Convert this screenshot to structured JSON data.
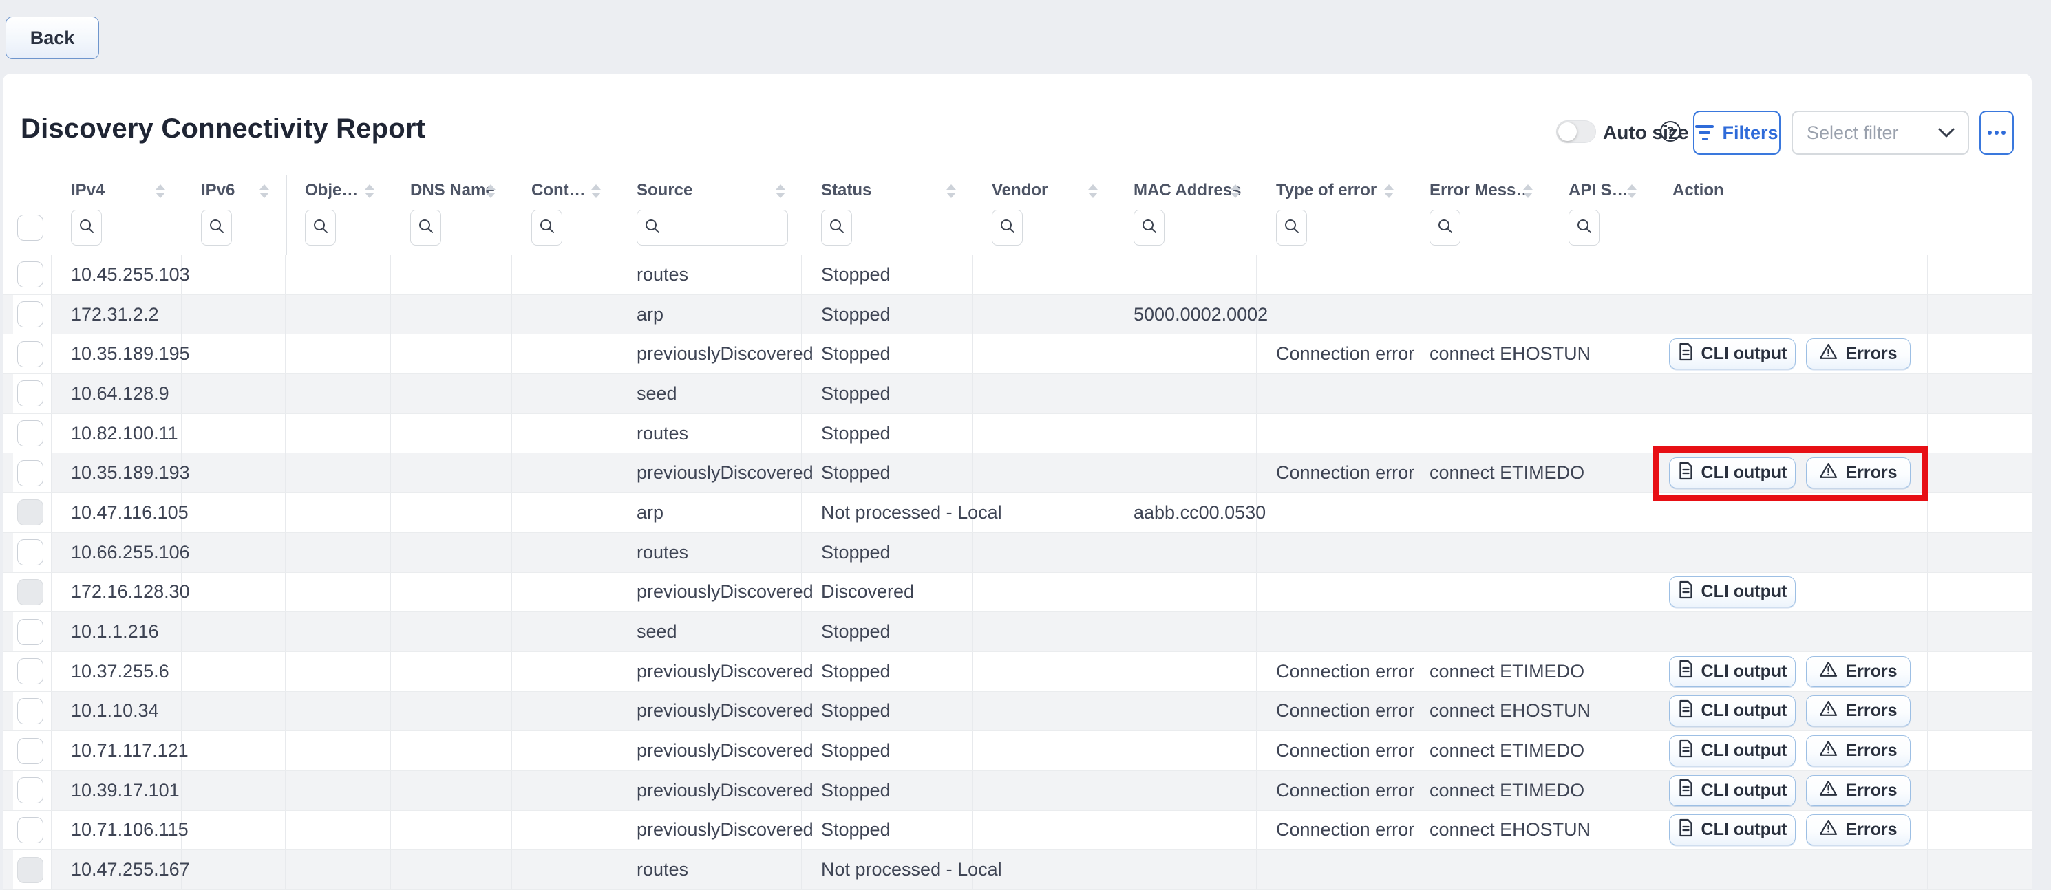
{
  "page": {
    "back_label": "Back"
  },
  "report": {
    "title": "Discovery Connectivity Report"
  },
  "toolbar": {
    "auto_size_label": "Auto size",
    "auto_size_state": "off",
    "filters_label": "Filters",
    "select_filter_placeholder": "Select filter",
    "icons": [
      "toggle-switch",
      "question-circle-icon",
      "filter-lines-icon",
      "chevron-down-icon",
      "ellipsis-icon"
    ]
  },
  "action_buttons": {
    "cli_label": "CLI output",
    "errors_label": "Errors"
  },
  "table": {
    "columns": [
      {
        "id": "check",
        "label": "",
        "sortable": false,
        "filter": "checkbox"
      },
      {
        "id": "ipv4",
        "label": "IPv4",
        "sortable": true,
        "filter": "search"
      },
      {
        "id": "ipv6",
        "label": "IPv6",
        "sortable": true,
        "filter": "search"
      },
      {
        "id": "object",
        "label": "Obje…",
        "sortable": true,
        "filter": "search"
      },
      {
        "id": "dns",
        "label": "DNS Name",
        "sortable": true,
        "filter": "search"
      },
      {
        "id": "contact",
        "label": "Cont…",
        "sortable": true,
        "filter": "search"
      },
      {
        "id": "source",
        "label": "Source",
        "sortable": true,
        "filter": "search-wide"
      },
      {
        "id": "status",
        "label": "Status",
        "sortable": true,
        "filter": "search"
      },
      {
        "id": "vendor",
        "label": "Vendor",
        "sortable": true,
        "filter": "search"
      },
      {
        "id": "mac",
        "label": "MAC Address",
        "sortable": true,
        "filter": "search"
      },
      {
        "id": "error_type",
        "label": "Type of error",
        "sortable": true,
        "filter": "search"
      },
      {
        "id": "error_message",
        "label": "Error Mess…",
        "sortable": true,
        "filter": "search"
      },
      {
        "id": "api",
        "label": "API S…",
        "sortable": true,
        "filter": "search"
      },
      {
        "id": "action",
        "label": "Action",
        "sortable": false,
        "filter": "none"
      },
      {
        "id": "filler",
        "label": "",
        "sortable": false,
        "filter": "none"
      }
    ],
    "rows": [
      {
        "ipv4": "10.45.255.103",
        "source": "routes",
        "status": "Stopped"
      },
      {
        "ipv4": "172.31.2.2",
        "source": "arp",
        "status": "Stopped",
        "mac": "5000.0002.0002"
      },
      {
        "ipv4": "10.35.189.195",
        "source": "previouslyDiscovered",
        "status": "Stopped",
        "error_type": "Connection error",
        "error_message": "connect EHOSTUN",
        "actions": [
          "cli",
          "errors"
        ]
      },
      {
        "ipv4": "10.64.128.9",
        "source": "seed",
        "status": "Stopped"
      },
      {
        "ipv4": "10.82.100.11",
        "source": "routes",
        "status": "Stopped"
      },
      {
        "ipv4": "10.35.189.193",
        "source": "previouslyDiscovered",
        "status": "Stopped",
        "error_type": "Connection error",
        "error_message": "connect ETIMEDO",
        "actions": [
          "cli",
          "errors"
        ],
        "highlighted": true
      },
      {
        "ipv4": "10.47.116.105",
        "source": "arp",
        "status": "Not processed - Local",
        "mac": "aabb.cc00.0530",
        "checkbox_disabled": true
      },
      {
        "ipv4": "10.66.255.106",
        "source": "routes",
        "status": "Stopped"
      },
      {
        "ipv4": "172.16.128.30",
        "source": "previouslyDiscovered",
        "status": "Discovered",
        "actions": [
          "cli"
        ],
        "checkbox_disabled": true
      },
      {
        "ipv4": "10.1.1.216",
        "source": "seed",
        "status": "Stopped"
      },
      {
        "ipv4": "10.37.255.6",
        "source": "previouslyDiscovered",
        "status": "Stopped",
        "error_type": "Connection error",
        "error_message": "connect ETIMEDO",
        "actions": [
          "cli",
          "errors"
        ]
      },
      {
        "ipv4": "10.1.10.34",
        "source": "previouslyDiscovered",
        "status": "Stopped",
        "error_type": "Connection error",
        "error_message": "connect EHOSTUN",
        "actions": [
          "cli",
          "errors"
        ]
      },
      {
        "ipv4": "10.71.117.121",
        "source": "previouslyDiscovered",
        "status": "Stopped",
        "error_type": "Connection error",
        "error_message": "connect ETIMEDO",
        "actions": [
          "cli",
          "errors"
        ]
      },
      {
        "ipv4": "10.39.17.101",
        "source": "previouslyDiscovered",
        "status": "Stopped",
        "error_type": "Connection error",
        "error_message": "connect ETIMEDO",
        "actions": [
          "cli",
          "errors"
        ]
      },
      {
        "ipv4": "10.71.106.115",
        "source": "previouslyDiscovered",
        "status": "Stopped",
        "error_type": "Connection error",
        "error_message": "connect EHOSTUN",
        "actions": [
          "cli",
          "errors"
        ]
      },
      {
        "ipv4": "10.47.255.167",
        "source": "routes",
        "status": "Not processed - Local",
        "checkbox_disabled": true
      }
    ]
  },
  "colors": {
    "accent_blue": "#2f6bd9",
    "highlight_red": "#e70f15",
    "row_stripe": "#f2f3f5",
    "page_bg": "#eceef2",
    "text_dark": "#3e4454"
  }
}
